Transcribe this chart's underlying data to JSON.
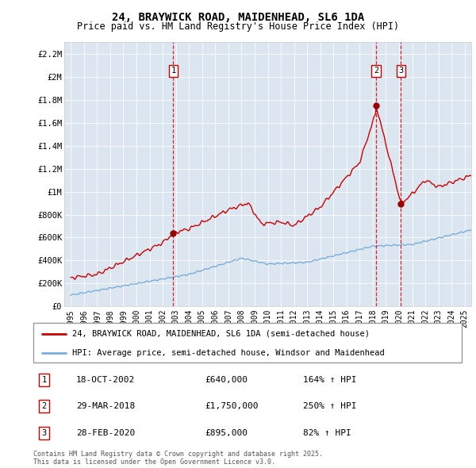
{
  "title": "24, BRAYWICK ROAD, MAIDENHEAD, SL6 1DA",
  "subtitle": "Price paid vs. HM Land Registry's House Price Index (HPI)",
  "legend_line1": "24, BRAYWICK ROAD, MAIDENHEAD, SL6 1DA (semi-detached house)",
  "legend_line2": "HPI: Average price, semi-detached house, Windsor and Maidenhead",
  "footnote": "Contains HM Land Registry data © Crown copyright and database right 2025.\nThis data is licensed under the Open Government Licence v3.0.",
  "transactions": [
    {
      "num": 1,
      "date": "18-OCT-2002",
      "price": 640000,
      "pct": "164%",
      "direction": "↑",
      "year": 2002.8
    },
    {
      "num": 2,
      "date": "29-MAR-2018",
      "price": 1750000,
      "pct": "250%",
      "direction": "↑",
      "year": 2018.25
    },
    {
      "num": 3,
      "date": "28-FEB-2020",
      "price": 895000,
      "pct": "82%",
      "direction": "↑",
      "year": 2020.15
    }
  ],
  "ylim": [
    0,
    2300000
  ],
  "xlim": [
    1994.5,
    2025.5
  ],
  "yticks": [
    0,
    200000,
    400000,
    600000,
    800000,
    1000000,
    1200000,
    1400000,
    1600000,
    1800000,
    2000000,
    2200000
  ],
  "ytick_labels": [
    "£0",
    "£200K",
    "£400K",
    "£600K",
    "£800K",
    "£1M",
    "£1.2M",
    "£1.4M",
    "£1.6M",
    "£1.8M",
    "£2M",
    "£2.2M"
  ],
  "xticks": [
    1995,
    1996,
    1997,
    1998,
    1999,
    2000,
    2001,
    2002,
    2003,
    2004,
    2005,
    2006,
    2007,
    2008,
    2009,
    2010,
    2011,
    2012,
    2013,
    2014,
    2015,
    2016,
    2017,
    2018,
    2019,
    2020,
    2021,
    2022,
    2023,
    2024,
    2025
  ],
  "bg_color": "#dce6f1",
  "red_line_color": "#cc0000",
  "blue_line_color": "#7aaddb",
  "dashed_color": "#dd0000",
  "marker_box_color": "#cc0000",
  "title_color": "#000000",
  "fig_bg": "#ffffff",
  "transaction_dot_color": "#990000"
}
